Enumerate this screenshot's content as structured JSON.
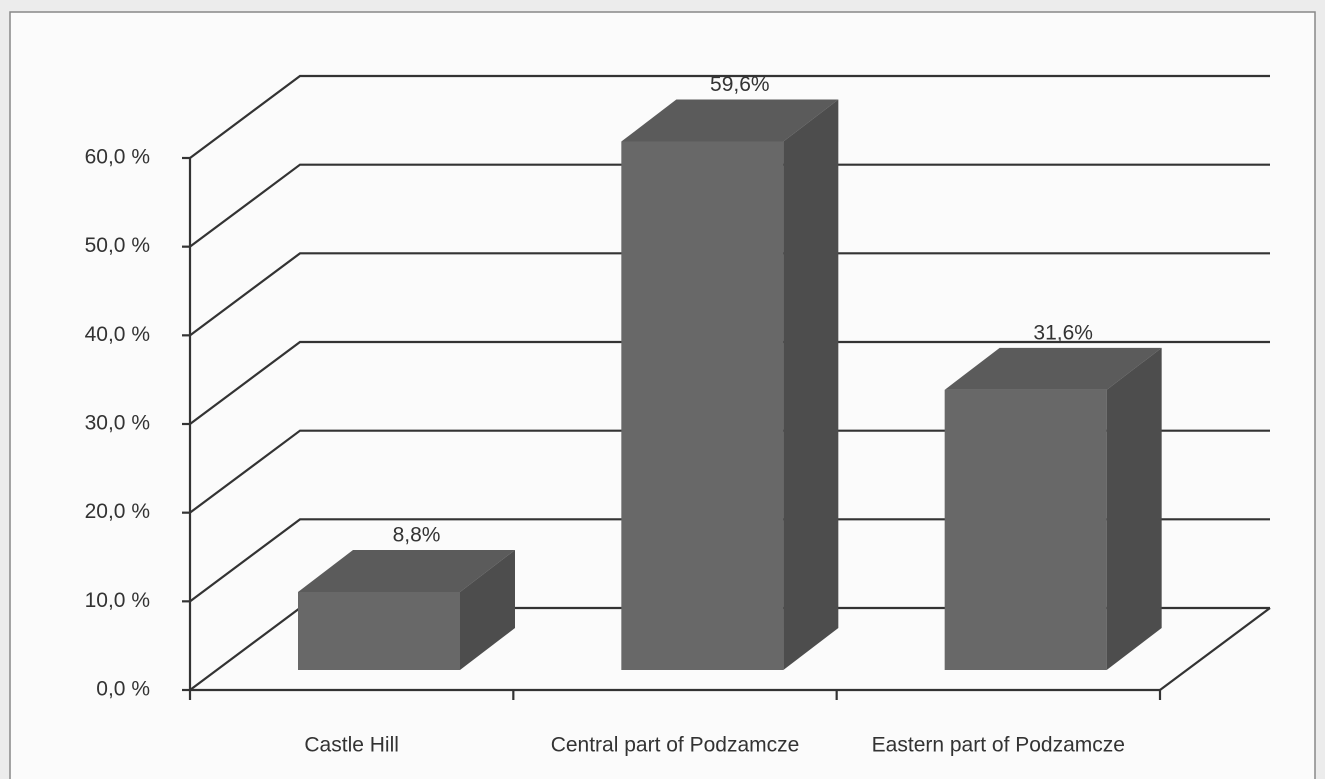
{
  "chart_data": {
    "type": "bar3d",
    "categories": [
      "Castle Hill",
      "Central part of Podzamcze",
      "Eastern part of Podzamcze"
    ],
    "values": [
      8.8,
      59.6,
      31.6
    ],
    "value_labels": [
      "8,8%",
      "59,6%",
      "31,6%"
    ],
    "color": "#686868",
    "ylim": [
      0,
      60
    ],
    "yticks": [
      {
        "value": 0,
        "label": "0,0 %"
      },
      {
        "value": 10,
        "label": "10,0 %"
      },
      {
        "value": 20,
        "label": "20,0 %"
      },
      {
        "value": 30,
        "label": "30,0 %"
      },
      {
        "value": 40,
        "label": "40,0 %"
      },
      {
        "value": 50,
        "label": "50,0 %"
      },
      {
        "value": 60,
        "label": "60,0 %"
      }
    ],
    "grid": true
  }
}
